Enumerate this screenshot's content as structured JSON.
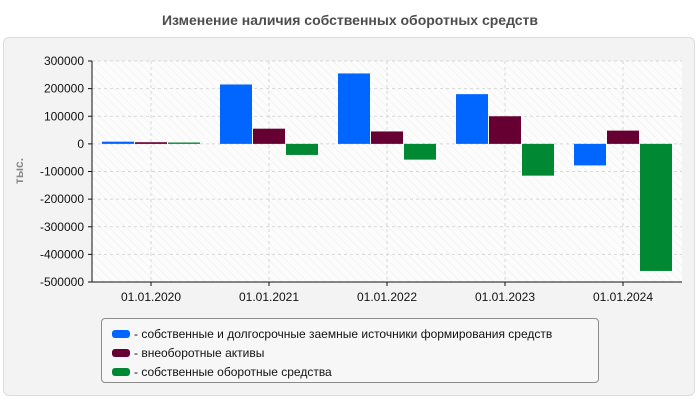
{
  "chart_data": {
    "type": "bar",
    "title": "Изменение наличия собственных оборотных средств",
    "ylabel": "тыс.",
    "xlabel": "",
    "categories": [
      "01.01.2020",
      "01.01.2021",
      "01.01.2022",
      "01.01.2023",
      "01.01.2024"
    ],
    "ylim": [
      -500000,
      300000
    ],
    "yticks": [
      300000,
      200000,
      100000,
      0,
      -100000,
      -200000,
      -300000,
      -400000,
      -500000
    ],
    "grid": true,
    "legend_position": "bottom",
    "series": [
      {
        "name": "- собственные и долгосрочные заемные источники формирования средств",
        "color": "#0066ff",
        "values": [
          8000,
          215000,
          255000,
          180000,
          -78000
        ]
      },
      {
        "name": "- внеоборотные активы",
        "color": "#660033",
        "values": [
          6000,
          55000,
          45000,
          100000,
          48000
        ]
      },
      {
        "name": "- собственные оборотные средства",
        "color": "#008833",
        "values": [
          5000,
          -40000,
          -57000,
          -115000,
          -460000
        ]
      }
    ]
  }
}
